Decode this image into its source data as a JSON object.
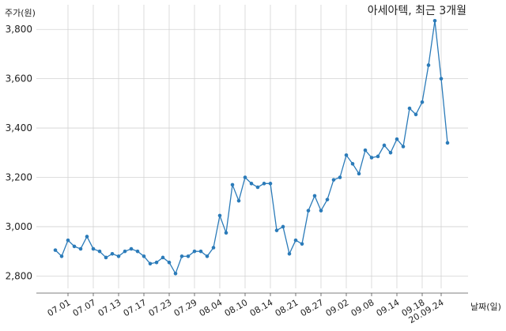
{
  "chart_data": {
    "type": "line",
    "title": "아세아텍, 최근 3개월",
    "xlabel": "날짜(일)",
    "ylabel": "주가(원)",
    "ylim": [
      2750,
      3900
    ],
    "yticks": [
      2800,
      3000,
      3200,
      3400,
      3600,
      3800
    ],
    "ytick_labels": [
      "2,800",
      "3,000",
      "3,200",
      "3,400",
      "3,600",
      "3,800"
    ],
    "xtick_indices": [
      2,
      6,
      10,
      14,
      18,
      22,
      26,
      30,
      34,
      38,
      42,
      46,
      50,
      54,
      58,
      61
    ],
    "xtick_labels": [
      "07.01",
      "07.07",
      "07.13",
      "07.17",
      "07.23",
      "07.29",
      "08.04",
      "08.10",
      "08.14",
      "08.21",
      "08.27",
      "09.02",
      "09.08",
      "09.14",
      "09.18",
      "20.09.24"
    ],
    "grid": true,
    "series": [
      {
        "color": "#2b7bb9",
        "values": [
          2905,
          2880,
          2945,
          2920,
          2910,
          2960,
          2910,
          2900,
          2875,
          2890,
          2880,
          2900,
          2910,
          2900,
          2880,
          2850,
          2855,
          2875,
          2855,
          2810,
          2880,
          2880,
          2900,
          2900,
          2880,
          2915,
          3045,
          2975,
          3170,
          3105,
          3200,
          3175,
          3160,
          3175,
          3175,
          2985,
          3000,
          2890,
          2945,
          2930,
          3065,
          3125,
          3065,
          3110,
          3190,
          3200,
          3290,
          3255,
          3215,
          3310,
          3280,
          3285,
          3330,
          3300,
          3355,
          3325,
          3480,
          3455,
          3505,
          3655,
          3835,
          3600,
          3340
        ]
      }
    ]
  }
}
